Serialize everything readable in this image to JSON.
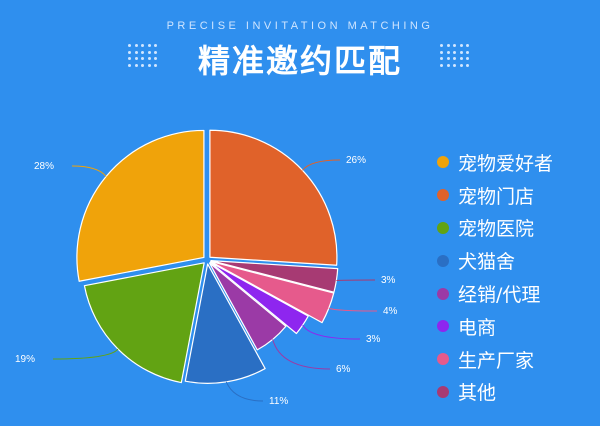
{
  "header": {
    "subtitle": "PRECISE INVITATION MATCHING",
    "title": "精准邀约匹配"
  },
  "chart_data": {
    "type": "pie",
    "title": "精准邀约匹配",
    "start_angle_deg": 0,
    "direction": "clockwise",
    "exploded": true,
    "slices": [
      {
        "label": "宠物门店",
        "value": 26,
        "pct_label": "26%",
        "color": "#e0622a"
      },
      {
        "label": "其他",
        "value": 3,
        "pct_label": "3%",
        "color": "#a73a73"
      },
      {
        "label": "生产厂家",
        "value": 4,
        "pct_label": "4%",
        "color": "#e65a8c"
      },
      {
        "label": "电商",
        "value": 3,
        "pct_label": "3%",
        "color": "#8e26ef"
      },
      {
        "label": "经销/代理",
        "value": 6,
        "pct_label": "6%",
        "color": "#9b3aa6"
      },
      {
        "label": "犬猫舍",
        "value": 11,
        "pct_label": "11%",
        "color": "#2a6fc4"
      },
      {
        "label": "宠物医院",
        "value": 19,
        "pct_label": "19%",
        "color": "#62a313"
      },
      {
        "label": "宠物爱好者",
        "value": 28,
        "pct_label": "28%",
        "color": "#f0a30a"
      }
    ],
    "legend": {
      "position": "right",
      "items": [
        {
          "label": "宠物爱好者",
          "color": "#f0a30a"
        },
        {
          "label": "宠物门店",
          "color": "#e0622a"
        },
        {
          "label": "宠物医院",
          "color": "#62a313"
        },
        {
          "label": "犬猫舍",
          "color": "#2a6fc4"
        },
        {
          "label": "经销/代理",
          "color": "#9b3aa6"
        },
        {
          "label": "电商",
          "color": "#8e26ef"
        },
        {
          "label": "生产厂家",
          "color": "#e65a8c"
        },
        {
          "label": "其他",
          "color": "#a73a73"
        }
      ]
    }
  }
}
